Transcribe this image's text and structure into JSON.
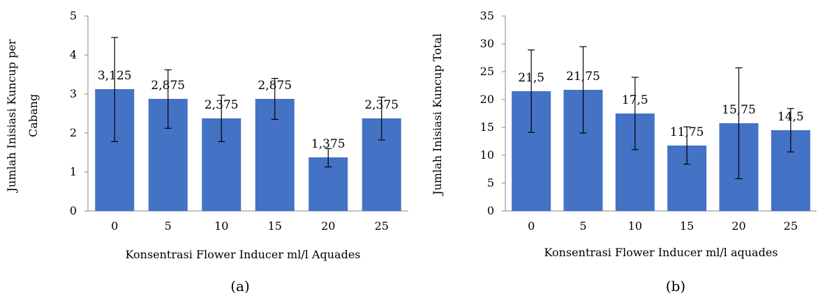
{
  "chart_data": [
    {
      "type": "bar",
      "panel_label": "(a)",
      "categories": [
        "0",
        "5",
        "10",
        "15",
        "20",
        "25"
      ],
      "values": [
        3.125,
        2.875,
        2.375,
        2.875,
        1.375,
        2.375
      ],
      "value_labels": [
        "3,125",
        "2,875",
        "2,375",
        "2,875",
        "1,375",
        "2,375"
      ],
      "error_bars": [
        {
          "low": 1.78,
          "high": 4.45
        },
        {
          "low": 2.12,
          "high": 3.62
        },
        {
          "low": 1.78,
          "high": 2.97
        },
        {
          "low": 2.35,
          "high": 3.4
        },
        {
          "low": 1.13,
          "high": 1.6
        },
        {
          "low": 1.82,
          "high": 2.92
        }
      ],
      "xlabel": "Konsentrasi Flower Inducer ml/l Aquades",
      "ylabel_lines": [
        "Jumlah Inisiasi Kuncup per",
        "Cabang"
      ],
      "ylim": [
        0,
        5
      ],
      "yticks": [
        0,
        1,
        2,
        3,
        4,
        5
      ],
      "bar_color": "#4472C4",
      "grid": false,
      "legend": "none"
    },
    {
      "type": "bar",
      "panel_label": "(b)",
      "categories": [
        "0",
        "5",
        "10",
        "15",
        "20",
        "25"
      ],
      "values": [
        21.5,
        21.75,
        17.5,
        11.75,
        15.75,
        14.5
      ],
      "value_labels": [
        "21,5",
        "21,75",
        "17,5",
        "11,75",
        "15,75",
        "14,5"
      ],
      "error_bars": [
        {
          "low": 14.1,
          "high": 28.9
        },
        {
          "low": 14.0,
          "high": 29.5
        },
        {
          "low": 11.0,
          "high": 24.0
        },
        {
          "low": 8.4,
          "high": 15.1
        },
        {
          "low": 5.8,
          "high": 25.7
        },
        {
          "low": 10.6,
          "high": 18.4
        }
      ],
      "xlabel": "Konsentrasi Flower Inducer ml/l aquades",
      "ylabel_lines": [
        "Jumlah Inisiasi Kuncup Total"
      ],
      "ylim": [
        0,
        35
      ],
      "yticks": [
        0,
        5,
        10,
        15,
        20,
        25,
        30,
        35
      ],
      "bar_color": "#4472C4",
      "grid": false,
      "legend": "none"
    }
  ]
}
